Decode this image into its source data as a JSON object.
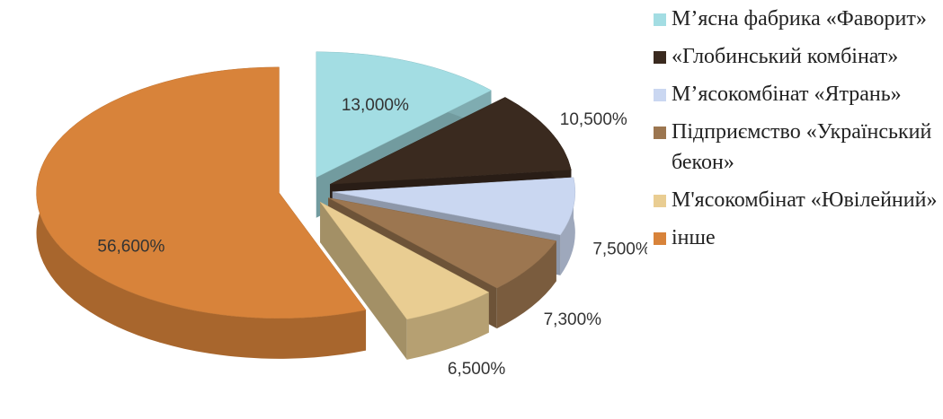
{
  "chart_data": {
    "type": "pie3d",
    "categories": [
      "М’ясна фабрика «Фаворит»",
      "«Глобинський комбінат»",
      "М’ясокомбінат «Ятрань»",
      "Підприємство «Український бекон»",
      "М'ясокомбінат «Ювілейний»",
      "інше"
    ],
    "values": [
      13,
      10.5,
      7.5,
      7.3,
      6.5,
      56.6
    ],
    "value_labels": [
      "13,000%",
      "10,500%",
      "7,500%",
      "7,300%",
      "6,500%",
      "56,600%"
    ],
    "colors": [
      "#a3dde3",
      "#3a2a1f",
      "#cad7f1",
      "#9c7650",
      "#e9cd92",
      "#d8833a"
    ],
    "legend": "right"
  }
}
